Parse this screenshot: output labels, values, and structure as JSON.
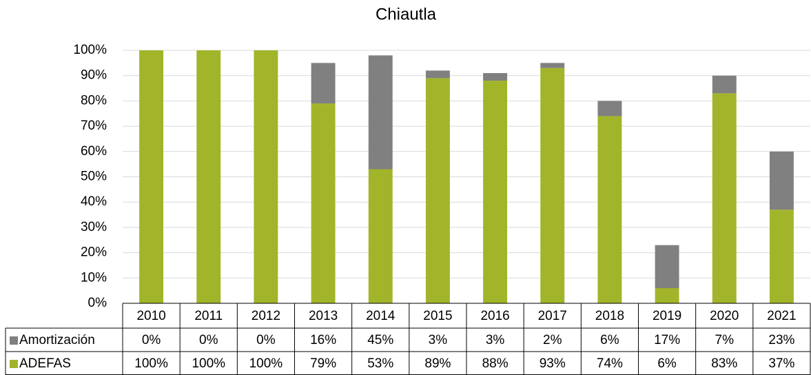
{
  "chart_data": {
    "type": "bar",
    "stacked": true,
    "title": "Chiautla",
    "categories": [
      "2010",
      "2011",
      "2012",
      "2013",
      "2014",
      "2015",
      "2016",
      "2017",
      "2018",
      "2019",
      "2020",
      "2021"
    ],
    "series": [
      {
        "name": "Amortización",
        "color": "#808080",
        "values": [
          0,
          0,
          0,
          16,
          45,
          3,
          3,
          2,
          6,
          17,
          7,
          23
        ],
        "value_labels": [
          "0%",
          "0%",
          "0%",
          "16%",
          "45%",
          "3%",
          "3%",
          "2%",
          "6%",
          "17%",
          "7%",
          "23%"
        ]
      },
      {
        "name": "ADEFAS",
        "color": "#a2b52a",
        "values": [
          100,
          100,
          100,
          79,
          53,
          89,
          88,
          93,
          74,
          6,
          83,
          37
        ],
        "value_labels": [
          "100%",
          "100%",
          "100%",
          "79%",
          "53%",
          "89%",
          "88%",
          "93%",
          "74%",
          "6%",
          "83%",
          "37%"
        ]
      }
    ],
    "ylim": [
      0,
      100
    ],
    "yticks": [
      {
        "value": 0,
        "label": "0%"
      },
      {
        "value": 10,
        "label": "10%"
      },
      {
        "value": 20,
        "label": "20%"
      },
      {
        "value": 30,
        "label": "30%"
      },
      {
        "value": 40,
        "label": "40%"
      },
      {
        "value": 50,
        "label": "50%"
      },
      {
        "value": 60,
        "label": "60%"
      },
      {
        "value": 70,
        "label": "70%"
      },
      {
        "value": 80,
        "label": "80%"
      },
      {
        "value": 90,
        "label": "90%"
      },
      {
        "value": 100,
        "label": "100%"
      }
    ],
    "grid": true
  }
}
